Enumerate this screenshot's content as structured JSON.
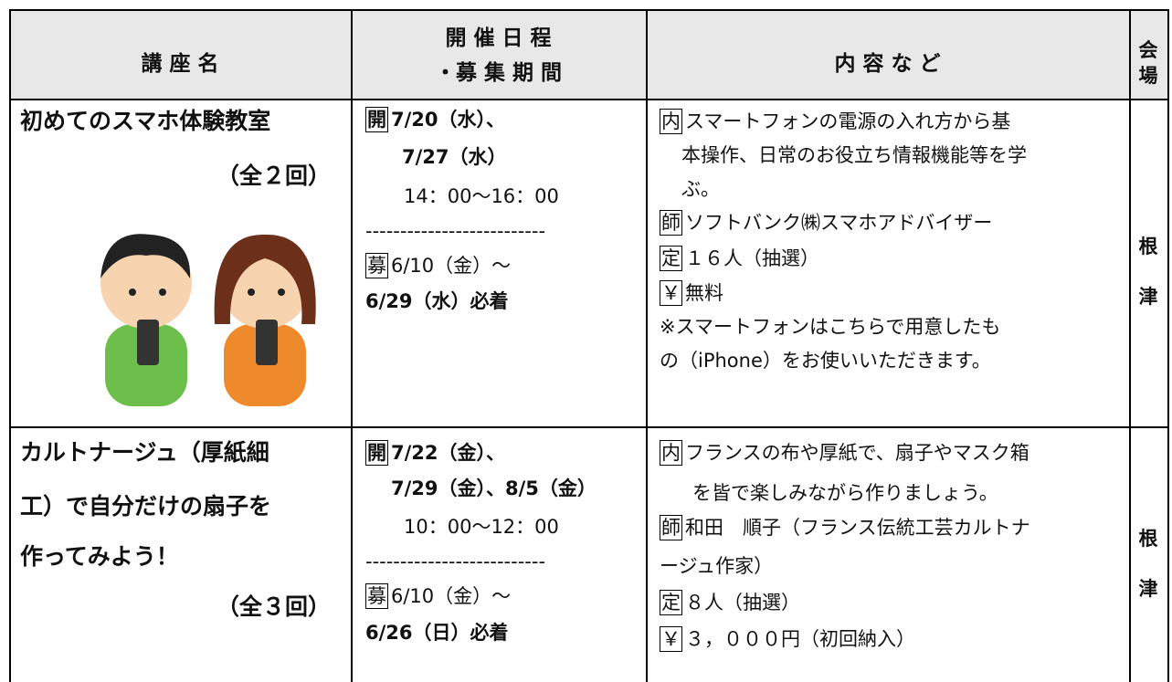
{
  "table": {
    "header": {
      "course": "講 座 名",
      "schedule": [
        "開 催 日 程",
        "・募 集 期 間"
      ],
      "content": "内 容 な ど",
      "venue": [
        "会",
        "場"
      ]
    },
    "rows": [
      {
        "title": [
          "初めてのスマホ体験教室",
          "（全２回）"
        ],
        "schedule": [
          {
            "tag": "開",
            "text": "7/20（水）、"
          },
          {
            "text": "7/27（水）"
          },
          {
            "text": "14：00～16：00"
          },
          {
            "text": "--------------------------"
          },
          {
            "tag": "募",
            "text": "6/10（金）～"
          },
          {
            "text": "6/29（水）必着"
          }
        ],
        "content": [
          {
            "tag": "内",
            "text": "スマートフォンの電源の入れ方から基"
          },
          {
            "text": "本操作、日常のお役立ち情報機能等を学"
          },
          {
            "text": "ぶ。"
          },
          {
            "tag": "師",
            "text": "ソフトバンク㈱スマホアドバイザー"
          },
          {
            "tag": "定",
            "text": "１６人（抽選）"
          },
          {
            "tag": "￥",
            "text": "無料"
          },
          {
            "text": "※スマートフォンはこちらで用意したも"
          },
          {
            "text": "の（iPhone）をお使いいただきます。"
          }
        ],
        "venue": [
          "根",
          "津"
        ]
      },
      {
        "title": [
          "カルトナージュ（厚紙細",
          "工）で自分だけの扇子を",
          "作ってみよう！",
          "（全３回）"
        ],
        "schedule": [
          {
            "tag": "開",
            "text": "7/22（金）、"
          },
          {
            "text": "7/29（金）、8/5（金）"
          },
          {
            "text": "10：00～12：00"
          },
          {
            "text": "--------------------------"
          },
          {
            "tag": "募",
            "text": "6/10（金）～"
          },
          {
            "text": "6/26（日）必着"
          }
        ],
        "content": [
          {
            "tag": "内",
            "text": "フランスの布や厚紙で、扇子やマスク箱"
          },
          {
            "text": "を皆で楽しみながら作りましょう。"
          },
          {
            "tag": "師",
            "text": "和田　順子（フランス伝統工芸カルトナ"
          },
          {
            "text": "ージュ作家）"
          },
          {
            "tag": "定",
            "text": "８人（抽選）"
          },
          {
            "tag": "￥",
            "text": "３，０００円（初回納入）"
          }
        ],
        "venue": [
          "根",
          "津"
        ]
      }
    ]
  }
}
